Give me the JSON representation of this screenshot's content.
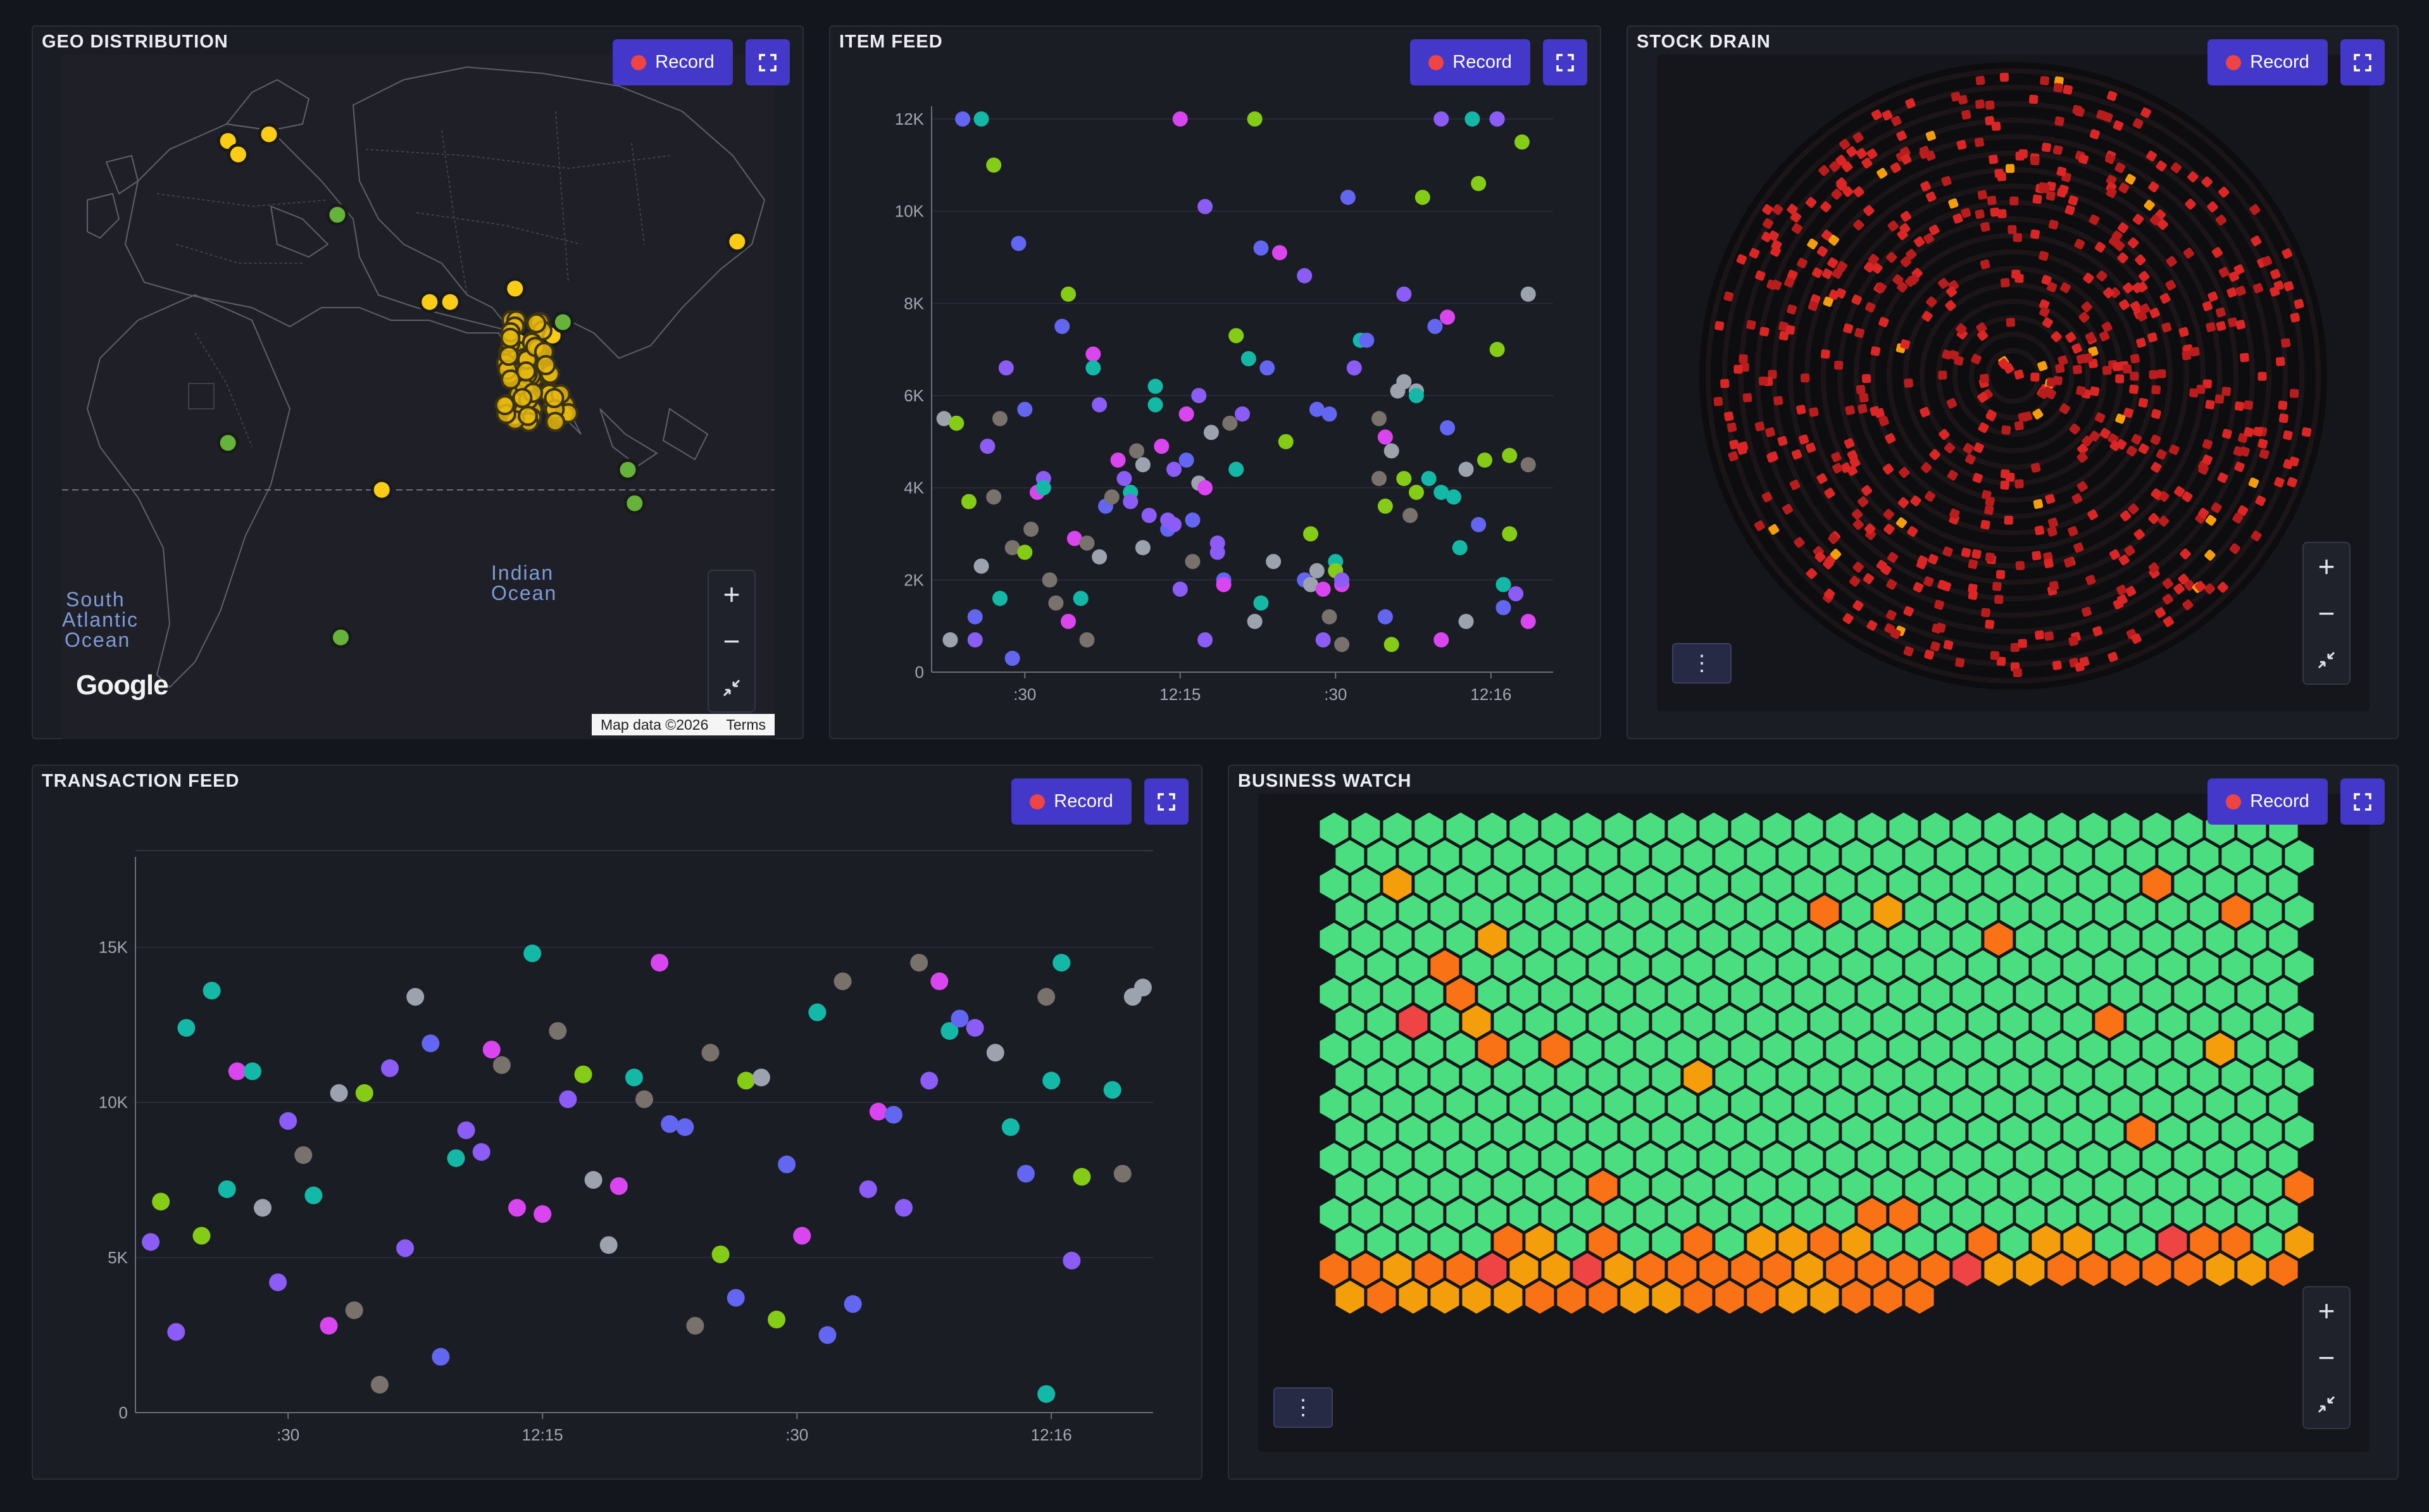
{
  "record_label": "Record",
  "panels": {
    "geo": {
      "title": "GEO DISTRIBUTION"
    },
    "item_feed": {
      "title": "ITEM FEED"
    },
    "stock_drain": {
      "title": "STOCK DRAIN"
    },
    "transaction_feed": {
      "title": "TRANSACTION FEED"
    },
    "business_watch": {
      "title": "BUSINESS WATCH"
    }
  },
  "map": {
    "labels": [
      "South",
      "Atlantic",
      "Ocean",
      "Indian",
      "Ocean"
    ],
    "logo": "Google",
    "attribution": "Map data ©2026",
    "terms": "Terms",
    "markers": [
      {
        "lat": 52,
        "lon": -7,
        "color": "yellow"
      },
      {
        "lat": 50,
        "lon": -4,
        "color": "yellow"
      },
      {
        "lat": 53,
        "lon": 5,
        "color": "yellow"
      },
      {
        "lat": 41,
        "lon": 25,
        "color": "green"
      },
      {
        "lat": 28,
        "lon": 52,
        "color": "yellow"
      },
      {
        "lat": 28,
        "lon": 58,
        "color": "yellow"
      },
      {
        "lat": 7,
        "lon": -7,
        "color": "green"
      },
      {
        "lat": 0,
        "lon": 38,
        "color": "yellow"
      },
      {
        "lat": -22,
        "lon": 26,
        "color": "green"
      },
      {
        "lat": 3,
        "lon": 110,
        "color": "green"
      },
      {
        "lat": -2,
        "lon": 112,
        "color": "green"
      },
      {
        "lat": 37,
        "lon": 142,
        "color": "yellow"
      },
      {
        "lat": 22,
        "lon": 78,
        "color": "yellow"
      },
      {
        "lat": 19,
        "lon": 80,
        "color": "yellow"
      },
      {
        "lat": 16,
        "lon": 81,
        "color": "yellow"
      },
      {
        "lat": 13,
        "lon": 79,
        "color": "yellow"
      },
      {
        "lat": 24,
        "lon": 84,
        "color": "yellow"
      },
      {
        "lat": 23,
        "lon": 88,
        "color": "yellow"
      },
      {
        "lat": 25,
        "lon": 91,
        "color": "green"
      },
      {
        "lat": 30,
        "lon": 77,
        "color": "yellow"
      },
      {
        "lat": 11,
        "lon": 77,
        "color": "yellow"
      }
    ]
  },
  "colors": {
    "accent": "#4338ca",
    "series": [
      "#8b5cf6",
      "#6366f1",
      "#14b8a6",
      "#d946ef",
      "#84cc16",
      "#9ca3af",
      "#78716c"
    ],
    "hex_ok": "#4ade80",
    "hex_warn": "#f97316",
    "hex_amber": "#f59e0b",
    "hex_crit": "#ef4444"
  },
  "chart_data": [
    {
      "id": "item_feed",
      "type": "scatter",
      "xlabels": [
        ":30",
        "12:15",
        ":30",
        "12:16"
      ],
      "yticks": [
        "0",
        "2K",
        "4K",
        "6K",
        "8K",
        "10K",
        "12K"
      ],
      "ylim": [
        0,
        12000
      ],
      "grid": true,
      "points": [
        [
          0.02,
          5500,
          5
        ],
        [
          0.03,
          700,
          5
        ],
        [
          0.04,
          5400,
          4
        ],
        [
          0.05,
          12000,
          1
        ],
        [
          0.06,
          3700,
          4
        ],
        [
          0.07,
          700,
          0
        ],
        [
          0.07,
          1200,
          1
        ],
        [
          0.08,
          12000,
          2
        ],
        [
          0.08,
          2300,
          5
        ],
        [
          0.09,
          4900,
          0
        ],
        [
          0.1,
          11000,
          4
        ],
        [
          0.1,
          3800,
          6
        ],
        [
          0.11,
          1600,
          2
        ],
        [
          0.11,
          5500,
          6
        ],
        [
          0.12,
          6600,
          0
        ],
        [
          0.13,
          2700,
          6
        ],
        [
          0.13,
          300,
          1
        ],
        [
          0.14,
          9300,
          1
        ],
        [
          0.15,
          5700,
          1
        ],
        [
          0.15,
          2600,
          4
        ],
        [
          0.16,
          3100,
          6
        ],
        [
          0.17,
          3900,
          3
        ],
        [
          0.18,
          4200,
          0
        ],
        [
          0.18,
          4000,
          2
        ],
        [
          0.19,
          2000,
          6
        ],
        [
          0.2,
          1500,
          6
        ],
        [
          0.21,
          7500,
          1
        ],
        [
          0.22,
          1100,
          3
        ],
        [
          0.22,
          8200,
          4
        ],
        [
          0.23,
          2900,
          3
        ],
        [
          0.24,
          1600,
          2
        ],
        [
          0.25,
          2800,
          6
        ],
        [
          0.25,
          700,
          6
        ],
        [
          0.26,
          6900,
          3
        ],
        [
          0.26,
          6600,
          2
        ],
        [
          0.27,
          5800,
          0
        ],
        [
          0.27,
          2500,
          5
        ],
        [
          0.28,
          3600,
          1
        ],
        [
          0.29,
          3800,
          6
        ],
        [
          0.3,
          4600,
          3
        ],
        [
          0.31,
          4200,
          0
        ],
        [
          0.32,
          3900,
          2
        ],
        [
          0.32,
          3700,
          0
        ],
        [
          0.33,
          4800,
          6
        ],
        [
          0.34,
          4500,
          5
        ],
        [
          0.34,
          2700,
          5
        ],
        [
          0.35,
          3400,
          0
        ],
        [
          0.36,
          5800,
          2
        ],
        [
          0.36,
          6200,
          2
        ],
        [
          0.37,
          4900,
          3
        ],
        [
          0.38,
          3100,
          1
        ],
        [
          0.38,
          3300,
          0
        ],
        [
          0.39,
          3200,
          0
        ],
        [
          0.39,
          4400,
          0
        ],
        [
          0.4,
          12000,
          3
        ],
        [
          0.4,
          1800,
          0
        ],
        [
          0.41,
          4600,
          1
        ],
        [
          0.41,
          5600,
          3
        ],
        [
          0.42,
          3300,
          1
        ],
        [
          0.42,
          2400,
          6
        ],
        [
          0.43,
          4100,
          5
        ],
        [
          0.43,
          6000,
          0
        ],
        [
          0.44,
          10100,
          0
        ],
        [
          0.44,
          4000,
          3
        ],
        [
          0.44,
          700,
          0
        ],
        [
          0.45,
          5200,
          5
        ],
        [
          0.46,
          2800,
          0
        ],
        [
          0.46,
          2600,
          0
        ],
        [
          0.47,
          2000,
          1
        ],
        [
          0.47,
          1900,
          3
        ],
        [
          0.48,
          5400,
          6
        ],
        [
          0.49,
          4400,
          2
        ],
        [
          0.49,
          7300,
          4
        ],
        [
          0.5,
          5600,
          0
        ],
        [
          0.51,
          6800,
          2
        ],
        [
          0.52,
          1100,
          5
        ],
        [
          0.52,
          12000,
          4
        ],
        [
          0.53,
          9200,
          1
        ],
        [
          0.53,
          1500,
          2
        ],
        [
          0.54,
          6600,
          1
        ],
        [
          0.55,
          2400,
          5
        ],
        [
          0.56,
          9100,
          3
        ],
        [
          0.57,
          5000,
          4
        ],
        [
          0.6,
          2000,
          1
        ],
        [
          0.6,
          8600,
          0
        ],
        [
          0.61,
          3000,
          4
        ],
        [
          0.61,
          1900,
          5
        ],
        [
          0.62,
          2200,
          5
        ],
        [
          0.62,
          5700,
          1
        ],
        [
          0.63,
          1800,
          3
        ],
        [
          0.63,
          700,
          0
        ],
        [
          0.64,
          5600,
          1
        ],
        [
          0.64,
          1200,
          6
        ],
        [
          0.65,
          2400,
          2
        ],
        [
          0.65,
          2200,
          4
        ],
        [
          0.66,
          1900,
          3
        ],
        [
          0.66,
          2000,
          0
        ],
        [
          0.66,
          600,
          6
        ],
        [
          0.67,
          10300,
          1
        ],
        [
          0.68,
          6600,
          0
        ],
        [
          0.69,
          7200,
          2
        ],
        [
          0.7,
          7200,
          1
        ],
        [
          0.72,
          5500,
          6
        ],
        [
          0.72,
          4200,
          6
        ],
        [
          0.73,
          5100,
          3
        ],
        [
          0.73,
          3600,
          4
        ],
        [
          0.73,
          1200,
          1
        ],
        [
          0.74,
          4800,
          5
        ],
        [
          0.74,
          600,
          4
        ],
        [
          0.75,
          6100,
          5
        ],
        [
          0.76,
          8200,
          0
        ],
        [
          0.76,
          6300,
          5
        ],
        [
          0.76,
          4200,
          4
        ],
        [
          0.77,
          3400,
          6
        ],
        [
          0.78,
          6100,
          5
        ],
        [
          0.78,
          6000,
          2
        ],
        [
          0.78,
          3900,
          4
        ],
        [
          0.79,
          10300,
          4
        ],
        [
          0.8,
          4200,
          2
        ],
        [
          0.81,
          7500,
          1
        ],
        [
          0.82,
          3900,
          2
        ],
        [
          0.82,
          12000,
          0
        ],
        [
          0.82,
          700,
          3
        ],
        [
          0.83,
          7700,
          3
        ],
        [
          0.83,
          5300,
          1
        ],
        [
          0.84,
          3800,
          2
        ],
        [
          0.85,
          2700,
          2
        ],
        [
          0.86,
          1100,
          5
        ],
        [
          0.86,
          4400,
          5
        ],
        [
          0.87,
          12000,
          2
        ],
        [
          0.88,
          10600,
          4
        ],
        [
          0.88,
          3200,
          1
        ],
        [
          0.89,
          4600,
          4
        ],
        [
          0.91,
          12000,
          1
        ],
        [
          0.91,
          12000,
          0
        ],
        [
          0.91,
          7000,
          4
        ],
        [
          0.92,
          1900,
          2
        ],
        [
          0.92,
          1400,
          1
        ],
        [
          0.93,
          3000,
          4
        ],
        [
          0.93,
          4700,
          4
        ],
        [
          0.94,
          1700,
          0
        ],
        [
          0.95,
          11500,
          4
        ],
        [
          0.96,
          1100,
          3
        ],
        [
          0.96,
          4500,
          6
        ],
        [
          0.96,
          8200,
          5
        ]
      ]
    },
    {
      "id": "transaction_feed",
      "type": "scatter",
      "xlabels": [
        ":30",
        "12:15",
        ":30",
        "12:16"
      ],
      "yticks": [
        "0",
        "5K",
        "10K",
        "15K"
      ],
      "ylim": [
        0,
        17500
      ],
      "grid": true,
      "points": [
        [
          0.015,
          5500,
          0
        ],
        [
          0.025,
          6800,
          4
        ],
        [
          0.04,
          2600,
          0
        ],
        [
          0.05,
          12400,
          2
        ],
        [
          0.065,
          5700,
          4
        ],
        [
          0.075,
          13600,
          2
        ],
        [
          0.09,
          7200,
          2
        ],
        [
          0.1,
          11000,
          3
        ],
        [
          0.115,
          11000,
          2
        ],
        [
          0.125,
          6600,
          5
        ],
        [
          0.14,
          4200,
          0
        ],
        [
          0.15,
          9400,
          0
        ],
        [
          0.165,
          8300,
          6
        ],
        [
          0.175,
          7000,
          2
        ],
        [
          0.19,
          2800,
          3
        ],
        [
          0.2,
          10300,
          5
        ],
        [
          0.215,
          3300,
          6
        ],
        [
          0.225,
          10300,
          4
        ],
        [
          0.24,
          900,
          6
        ],
        [
          0.25,
          11100,
          0
        ],
        [
          0.265,
          5300,
          0
        ],
        [
          0.275,
          13400,
          5
        ],
        [
          0.29,
          11900,
          1
        ],
        [
          0.3,
          1800,
          1
        ],
        [
          0.315,
          8200,
          2
        ],
        [
          0.325,
          9100,
          0
        ],
        [
          0.34,
          8400,
          0
        ],
        [
          0.35,
          11700,
          3
        ],
        [
          0.36,
          11200,
          6
        ],
        [
          0.375,
          6600,
          3
        ],
        [
          0.39,
          14800,
          2
        ],
        [
          0.4,
          6400,
          3
        ],
        [
          0.415,
          12300,
          6
        ],
        [
          0.425,
          10100,
          0
        ],
        [
          0.44,
          10900,
          4
        ],
        [
          0.45,
          7500,
          5
        ],
        [
          0.465,
          5400,
          5
        ],
        [
          0.475,
          7300,
          3
        ],
        [
          0.49,
          10800,
          2
        ],
        [
          0.5,
          10100,
          6
        ],
        [
          0.515,
          14500,
          3
        ],
        [
          0.525,
          9300,
          1
        ],
        [
          0.54,
          9200,
          1
        ],
        [
          0.55,
          2800,
          6
        ],
        [
          0.565,
          11600,
          6
        ],
        [
          0.575,
          5100,
          4
        ],
        [
          0.59,
          3700,
          1
        ],
        [
          0.6,
          10700,
          4
        ],
        [
          0.615,
          10800,
          5
        ],
        [
          0.63,
          3000,
          4
        ],
        [
          0.64,
          8000,
          1
        ],
        [
          0.655,
          5700,
          3
        ],
        [
          0.67,
          12900,
          2
        ],
        [
          0.68,
          2500,
          1
        ],
        [
          0.695,
          13900,
          6
        ],
        [
          0.705,
          3500,
          1
        ],
        [
          0.72,
          7200,
          0
        ],
        [
          0.73,
          9700,
          3
        ],
        [
          0.745,
          9600,
          1
        ],
        [
          0.755,
          6600,
          0
        ],
        [
          0.77,
          14500,
          6
        ],
        [
          0.78,
          10700,
          0
        ],
        [
          0.79,
          13900,
          3
        ],
        [
          0.8,
          12300,
          2
        ],
        [
          0.81,
          12700,
          1
        ],
        [
          0.825,
          12400,
          0
        ],
        [
          0.845,
          11600,
          5
        ],
        [
          0.86,
          9200,
          2
        ],
        [
          0.875,
          7700,
          1
        ],
        [
          0.895,
          13400,
          6
        ],
        [
          0.9,
          10700,
          2
        ],
        [
          0.91,
          14500,
          2
        ],
        [
          0.92,
          4900,
          0
        ],
        [
          0.93,
          7600,
          4
        ],
        [
          0.96,
          10400,
          2
        ],
        [
          0.97,
          7700,
          6
        ],
        [
          0.98,
          13400,
          5
        ],
        [
          0.99,
          13700,
          5
        ],
        [
          0.895,
          600,
          2
        ]
      ]
    },
    {
      "id": "business_watch",
      "type": "heatmap",
      "cols": 31,
      "rows": 18,
      "filled_last_row": 19,
      "hot_cells": [
        [
          3,
          5,
          "warn"
        ],
        [
          2,
          2,
          "amber"
        ],
        [
          15,
          3,
          "warn"
        ],
        [
          17,
          3,
          "amber"
        ],
        [
          26,
          2,
          "warn"
        ],
        [
          28,
          3,
          "warn"
        ],
        [
          5,
          4,
          "amber"
        ],
        [
          21,
          4,
          "warn"
        ],
        [
          3,
          5,
          "warn"
        ],
        [
          4,
          6,
          "warn"
        ],
        [
          2,
          7,
          "crit"
        ],
        [
          4,
          7,
          "amber"
        ],
        [
          24,
          7,
          "warn"
        ],
        [
          5,
          8,
          "warn"
        ],
        [
          7,
          8,
          "warn"
        ],
        [
          28,
          8,
          "amber"
        ],
        [
          11,
          9,
          "amber"
        ],
        [
          25,
          11,
          "warn"
        ],
        [
          8,
          13,
          "warn"
        ],
        [
          30,
          13,
          "warn"
        ],
        [
          17,
          14,
          "warn"
        ],
        [
          18,
          14,
          "warn"
        ]
      ]
    }
  ]
}
